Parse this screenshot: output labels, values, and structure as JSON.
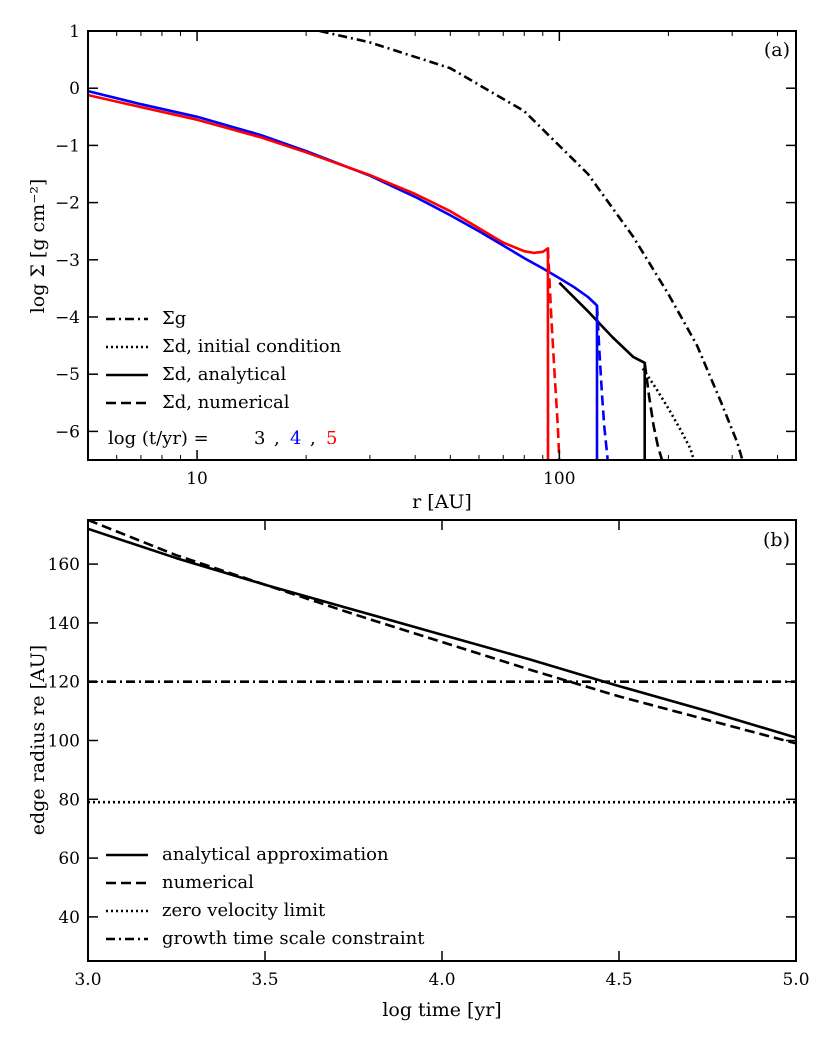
{
  "figure": {
    "panels": [
      {
        "id": "a",
        "tag": "(a)",
        "xlabel": "r [AU]",
        "ylabel": "log Σ [g cm⁻²]",
        "xscale": "log",
        "xlim": [
          5,
          450
        ],
        "ylim": [
          -6.5,
          1
        ],
        "xticks": [
          {
            "value": 10,
            "label": "10"
          },
          {
            "value": 100,
            "label": "100"
          }
        ],
        "yticks": [
          {
            "value": 1,
            "label": "1"
          },
          {
            "value": 0,
            "label": "0"
          },
          {
            "value": -1,
            "label": "−1"
          },
          {
            "value": -2,
            "label": "−2"
          },
          {
            "value": -3,
            "label": "−3"
          },
          {
            "value": -4,
            "label": "−4"
          },
          {
            "value": -5,
            "label": "−5"
          },
          {
            "value": -6,
            "label": "−6"
          }
        ],
        "legend": [
          {
            "style": "dashdot",
            "label": "Σg"
          },
          {
            "style": "dotted",
            "label": "Σd, initial condition"
          },
          {
            "style": "solid",
            "label": "Σd, analytical"
          },
          {
            "style": "dashed",
            "label": "Σd, numerical"
          }
        ],
        "time_legend": {
          "prefix": "log (t/yr) =",
          "items": [
            {
              "value": "3",
              "color": "#000000"
            },
            {
              "value": "4",
              "color": "#0000ff"
            },
            {
              "value": "5",
              "color": "#ff0000"
            }
          ],
          "sep": ","
        }
      },
      {
        "id": "b",
        "tag": "(b)",
        "xlabel": "log time [yr]",
        "ylabel": "edge radius re [AU]",
        "xscale": "linear",
        "xlim": [
          3.0,
          5.0
        ],
        "ylim": [
          25,
          175
        ],
        "xticks": [
          {
            "value": 3.0,
            "label": "3.0"
          },
          {
            "value": 3.5,
            "label": "3.5"
          },
          {
            "value": 4.0,
            "label": "4.0"
          },
          {
            "value": 4.5,
            "label": "4.5"
          },
          {
            "value": 5.0,
            "label": "5.0"
          }
        ],
        "yticks": [
          {
            "value": 40,
            "label": "40"
          },
          {
            "value": 60,
            "label": "60"
          },
          {
            "value": 80,
            "label": "80"
          },
          {
            "value": 100,
            "label": "100"
          },
          {
            "value": 120,
            "label": "120"
          },
          {
            "value": 140,
            "label": "140"
          },
          {
            "value": 160,
            "label": "160"
          }
        ],
        "legend": [
          {
            "style": "solid",
            "label": "analytical approximation"
          },
          {
            "style": "dashed",
            "label": "numerical"
          },
          {
            "style": "dotted",
            "label": "zero velocity limit"
          },
          {
            "style": "dashdot",
            "label": "growth time scale constraint"
          }
        ]
      }
    ]
  },
  "chart_data": [
    {
      "type": "line",
      "panel": "a",
      "series": [
        {
          "name": "Σg",
          "color": "#000000",
          "style": "dashdot",
          "x": [
            21.8,
            30,
            50,
            80,
            120,
            160,
            200,
            240,
            280,
            310,
            320
          ],
          "y": [
            1.0,
            0.8,
            0.35,
            -0.4,
            -1.5,
            -2.6,
            -3.6,
            -4.5,
            -5.5,
            -6.2,
            -6.5
          ]
        },
        {
          "name": "Σd, initial condition",
          "color": "#000000",
          "style": "dotted",
          "x": [
            170,
            185,
            200,
            215,
            230,
            235
          ],
          "y": [
            -4.9,
            -5.25,
            -5.6,
            -5.95,
            -6.3,
            -6.5
          ]
        },
        {
          "name": "Σd, analytical (log t/yr = 3)",
          "color": "#000000",
          "style": "solid",
          "x": [
            100,
            120,
            140,
            160,
            172,
            172.01
          ],
          "y": [
            -3.4,
            -3.9,
            -4.35,
            -4.7,
            -4.8,
            -6.5
          ]
        },
        {
          "name": "Σd, numerical (log t/yr = 3)",
          "color": "#000000",
          "style": "dashed",
          "x": [
            172,
            177,
            182,
            187,
            192
          ],
          "y": [
            -4.8,
            -5.4,
            -5.9,
            -6.25,
            -6.5
          ]
        },
        {
          "name": "Σd, analytical (log t/yr = 4)",
          "color": "#0000ff",
          "style": "solid",
          "x": [
            5,
            7,
            10,
            15,
            20,
            30,
            40,
            50,
            60,
            70,
            80,
            90,
            100,
            110,
            120,
            127,
            127.01,
            127.02
          ],
          "y": [
            -0.05,
            -0.28,
            -0.5,
            -0.82,
            -1.1,
            -1.53,
            -1.9,
            -2.22,
            -2.5,
            -2.75,
            -2.97,
            -3.15,
            -3.32,
            -3.48,
            -3.65,
            -3.8,
            -3.8,
            -6.5
          ]
        },
        {
          "name": "Σd, numerical (log t/yr = 4)",
          "color": "#0000ff",
          "style": "dashed",
          "x": [
            127,
            129,
            131,
            133,
            136
          ],
          "y": [
            -3.8,
            -4.6,
            -5.3,
            -5.9,
            -6.5
          ]
        },
        {
          "name": "Σd, analytical (log t/yr = 5)",
          "color": "#ff0000",
          "style": "solid",
          "x": [
            5,
            7,
            10,
            15,
            20,
            30,
            40,
            50,
            60,
            70,
            80,
            85,
            90,
            93,
            93.01,
            93.02
          ],
          "y": [
            -0.12,
            -0.33,
            -0.55,
            -0.86,
            -1.12,
            -1.52,
            -1.85,
            -2.15,
            -2.45,
            -2.7,
            -2.85,
            -2.88,
            -2.86,
            -2.8,
            -2.8,
            -6.5
          ]
        },
        {
          "name": "Σd, numerical (log t/yr = 5)",
          "color": "#ff0000",
          "style": "dashed",
          "x": [
            93,
            95,
            97,
            99,
            100
          ],
          "y": [
            -2.8,
            -4.0,
            -5.0,
            -5.9,
            -6.5
          ]
        }
      ]
    },
    {
      "type": "line",
      "panel": "b",
      "series": [
        {
          "name": "analytical approximation",
          "color": "#000000",
          "style": "solid",
          "x": [
            3.0,
            3.25,
            3.5,
            3.75,
            4.0,
            4.25,
            4.5,
            4.75,
            5.0
          ],
          "y": [
            172,
            162,
            153,
            144.5,
            136,
            127.5,
            118.5,
            110,
            101
          ]
        },
        {
          "name": "numerical",
          "color": "#000000",
          "style": "dashed",
          "x": [
            3.0,
            3.25,
            3.5,
            3.75,
            4.0,
            4.25,
            4.5,
            4.75,
            5.0
          ],
          "y": [
            175,
            163,
            153,
            143,
            133.5,
            124,
            115,
            107,
            99
          ]
        },
        {
          "name": "zero velocity limit",
          "color": "#000000",
          "style": "dotted",
          "x": [
            3.0,
            5.0
          ],
          "y": [
            79,
            79
          ]
        },
        {
          "name": "growth time scale constraint",
          "color": "#000000",
          "style": "dashdot",
          "x": [
            3.0,
            5.0
          ],
          "y": [
            120,
            120
          ]
        }
      ]
    }
  ]
}
